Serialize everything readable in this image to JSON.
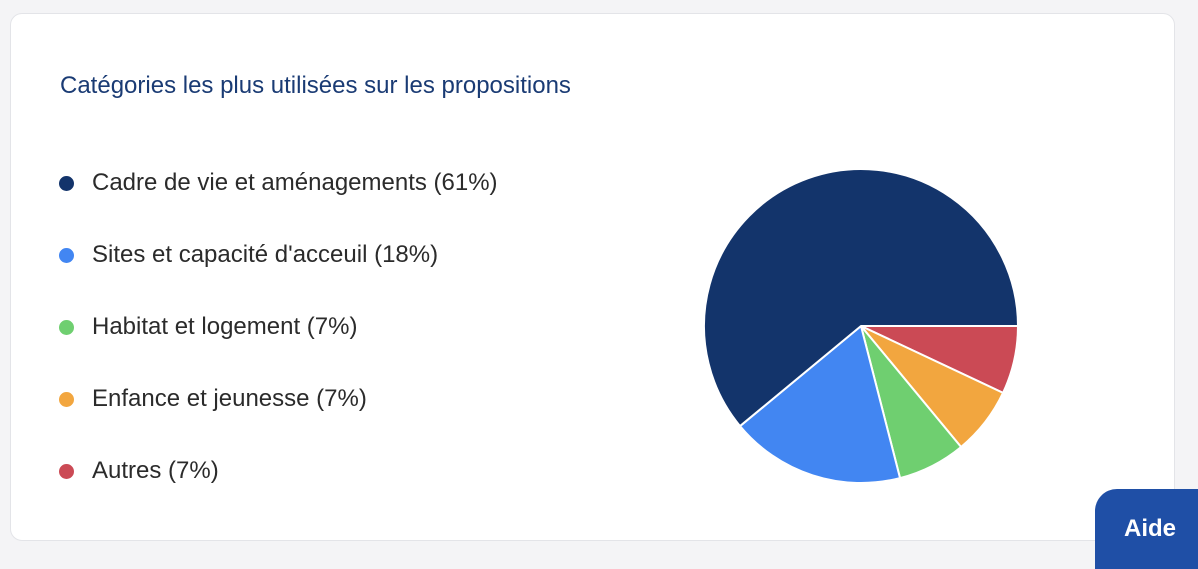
{
  "card": {
    "title": "Catégories les plus utilisées sur les propositions"
  },
  "legend": [
    {
      "label": "Cadre de vie et aménagements (61%)"
    },
    {
      "label": "Sites et capacité d'acceuil (18%)"
    },
    {
      "label": "Habitat et logement (7%)"
    },
    {
      "label": "Enfance et jeunesse (7%)"
    },
    {
      "label": "Autres (7%)"
    }
  ],
  "chart_data": {
    "type": "pie",
    "title": "Catégories les plus utilisées sur les propositions",
    "categories": [
      "Cadre de vie et aménagements",
      "Sites et capacité d'acceuil",
      "Habitat et logement",
      "Enfance et jeunesse",
      "Autres"
    ],
    "values": [
      61,
      18,
      7,
      7,
      7
    ],
    "unit": "%",
    "colors": [
      "#13346b",
      "#4286f2",
      "#6fcf70",
      "#f2a63f",
      "#cb4a55"
    ],
    "legend_position": "left",
    "slice_start": "Autres at 3 o'clock, clockwise"
  },
  "help": {
    "label": "Aide"
  }
}
